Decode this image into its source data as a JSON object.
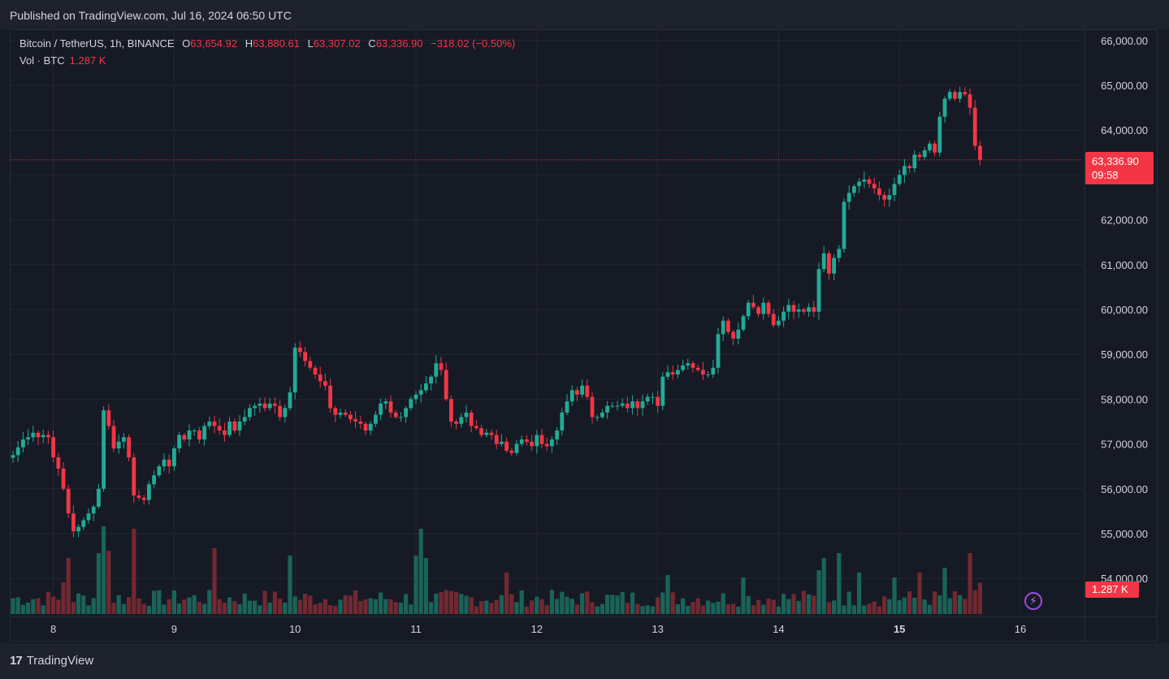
{
  "header": {
    "published": "Published on TradingView.com, Jul 16, 2024 06:50 UTC"
  },
  "legend": {
    "symbol": "Bitcoin / TetherUS, 1h, BINANCE",
    "o_label": "O",
    "o": "63,654.92",
    "h_label": "H",
    "h": "63,880.61",
    "l_label": "L",
    "l": "63,307.02",
    "c_label": "C",
    "c": "63,336.90",
    "change": "−318.02 (−0.50%)",
    "vol_label": "Vol · BTC",
    "vol_value": "1.287 K"
  },
  "price_tag": {
    "price": "63,336.90",
    "countdown": "09:58"
  },
  "vol_tag": "1.287 K",
  "footer": {
    "brand": "TradingView"
  },
  "colors": {
    "up": "#22ab94",
    "down": "#f23645",
    "background": "#161a25",
    "grid": "#232733"
  },
  "chart_data": {
    "type": "candlestick",
    "y_axis": {
      "range": [
        53400,
        66300
      ],
      "ticks": [
        54000,
        55000,
        56000,
        57000,
        58000,
        59000,
        60000,
        61000,
        62000,
        63000,
        64000,
        65000,
        66000
      ],
      "tick_labels": [
        "54,000.00",
        "55,000.00",
        "56,000.00",
        "57,000.00",
        "58,000.00",
        "59,000.00",
        "60,000.00",
        "61,000.00",
        "62,000.00",
        "63,000.00",
        "64,000.00",
        "65,000.00",
        "66,000.00"
      ]
    },
    "x_axis": {
      "labels": [
        "8",
        "9",
        "10",
        "11",
        "12",
        "13",
        "14",
        "15",
        "16"
      ],
      "bold": [
        "15"
      ]
    },
    "last_price": 63336.9,
    "close_path": [
      [
        0,
        56750
      ],
      [
        2,
        57100
      ],
      [
        3,
        57150
      ],
      [
        4,
        57250
      ],
      [
        5,
        57150
      ],
      [
        6,
        57200
      ],
      [
        7,
        57150
      ],
      [
        8,
        56700
      ],
      [
        9,
        56450
      ],
      [
        10,
        56000
      ],
      [
        11,
        55450
      ],
      [
        12,
        55050
      ],
      [
        13,
        55150
      ],
      [
        14,
        55300
      ],
      [
        15,
        55450
      ],
      [
        16,
        55600
      ],
      [
        17,
        56000
      ],
      [
        18,
        57750
      ],
      [
        19,
        57400
      ],
      [
        20,
        56900
      ],
      [
        21,
        57050
      ],
      [
        22,
        57150
      ],
      [
        23,
        56700
      ],
      [
        24,
        55850
      ],
      [
        25,
        55800
      ],
      [
        26,
        55750
      ],
      [
        27,
        56100
      ],
      [
        28,
        56300
      ],
      [
        29,
        56500
      ],
      [
        30,
        56650
      ],
      [
        31,
        56500
      ],
      [
        32,
        56900
      ],
      [
        33,
        57200
      ],
      [
        34,
        57100
      ],
      [
        35,
        57300
      ],
      [
        36,
        57300
      ],
      [
        37,
        57100
      ],
      [
        38,
        57400
      ],
      [
        39,
        57500
      ],
      [
        40,
        57400
      ],
      [
        41,
        57300
      ],
      [
        42,
        57200
      ],
      [
        43,
        57500
      ],
      [
        44,
        57300
      ],
      [
        45,
        57500
      ],
      [
        46,
        57600
      ],
      [
        47,
        57800
      ],
      [
        48,
        57850
      ],
      [
        49,
        57900
      ],
      [
        50,
        57800
      ],
      [
        51,
        57900
      ],
      [
        52,
        57850
      ],
      [
        53,
        57600
      ],
      [
        54,
        57800
      ],
      [
        55,
        58150
      ],
      [
        56,
        59150
      ],
      [
        57,
        59050
      ],
      [
        58,
        58850
      ],
      [
        59,
        58700
      ],
      [
        60,
        58550
      ],
      [
        61,
        58400
      ],
      [
        62,
        58300
      ],
      [
        63,
        57800
      ],
      [
        64,
        57650
      ],
      [
        65,
        57700
      ],
      [
        66,
        57650
      ],
      [
        67,
        57550
      ],
      [
        68,
        57500
      ],
      [
        69,
        57450
      ],
      [
        70,
        57300
      ],
      [
        71,
        57450
      ],
      [
        72,
        57650
      ],
      [
        73,
        57900
      ],
      [
        74,
        57950
      ],
      [
        75,
        57700
      ],
      [
        76,
        57600
      ],
      [
        77,
        57600
      ],
      [
        78,
        57800
      ],
      [
        79,
        58000
      ],
      [
        80,
        58100
      ],
      [
        81,
        58200
      ],
      [
        82,
        58350
      ],
      [
        83,
        58500
      ],
      [
        84,
        58800
      ],
      [
        85,
        58650
      ],
      [
        86,
        58000
      ],
      [
        87,
        57500
      ],
      [
        88,
        57450
      ],
      [
        89,
        57600
      ],
      [
        90,
        57700
      ],
      [
        91,
        57400
      ],
      [
        92,
        57350
      ],
      [
        93,
        57200
      ],
      [
        94,
        57250
      ],
      [
        95,
        57200
      ],
      [
        96,
        57000
      ],
      [
        97,
        57050
      ],
      [
        98,
        56850
      ],
      [
        99,
        56800
      ],
      [
        100,
        57000
      ],
      [
        101,
        57100
      ],
      [
        102,
        57050
      ],
      [
        103,
        56950
      ],
      [
        104,
        57200
      ],
      [
        105,
        57000
      ],
      [
        106,
        56950
      ],
      [
        107,
        57100
      ],
      [
        108,
        57300
      ],
      [
        109,
        57700
      ],
      [
        110,
        57950
      ],
      [
        111,
        58200
      ],
      [
        112,
        58100
      ],
      [
        113,
        58300
      ],
      [
        114,
        58050
      ],
      [
        115,
        57600
      ],
      [
        116,
        57600
      ],
      [
        117,
        57700
      ],
      [
        118,
        57850
      ],
      [
        119,
        57850
      ],
      [
        120,
        57850
      ],
      [
        121,
        57900
      ],
      [
        122,
        57800
      ],
      [
        123,
        57950
      ],
      [
        124,
        57800
      ],
      [
        125,
        57950
      ],
      [
        126,
        58050
      ],
      [
        127,
        58050
      ],
      [
        128,
        57850
      ],
      [
        129,
        58500
      ],
      [
        130,
        58600
      ],
      [
        131,
        58550
      ],
      [
        132,
        58650
      ],
      [
        133,
        58750
      ],
      [
        134,
        58800
      ],
      [
        135,
        58700
      ],
      [
        136,
        58650
      ],
      [
        137,
        58550
      ],
      [
        138,
        58550
      ],
      [
        139,
        58700
      ],
      [
        140,
        59450
      ],
      [
        141,
        59750
      ],
      [
        142,
        59500
      ],
      [
        143,
        59350
      ],
      [
        144,
        59550
      ],
      [
        145,
        59850
      ],
      [
        146,
        60150
      ],
      [
        147,
        60050
      ],
      [
        148,
        59900
      ],
      [
        149,
        60150
      ],
      [
        150,
        59900
      ],
      [
        151,
        59650
      ],
      [
        152,
        59750
      ],
      [
        153,
        59950
      ],
      [
        154,
        60100
      ],
      [
        155,
        59950
      ],
      [
        156,
        60000
      ],
      [
        157,
        59950
      ],
      [
        158,
        60050
      ],
      [
        159,
        59950
      ],
      [
        160,
        60900
      ],
      [
        161,
        61250
      ],
      [
        162,
        60800
      ],
      [
        163,
        61150
      ],
      [
        164,
        61350
      ],
      [
        165,
        62400
      ],
      [
        166,
        62600
      ],
      [
        167,
        62750
      ],
      [
        168,
        62850
      ],
      [
        169,
        62900
      ],
      [
        170,
        62800
      ],
      [
        171,
        62700
      ],
      [
        172,
        62550
      ],
      [
        173,
        62450
      ],
      [
        174,
        62550
      ],
      [
        175,
        62800
      ],
      [
        176,
        63000
      ],
      [
        177,
        63200
      ],
      [
        178,
        63150
      ],
      [
        179,
        63450
      ],
      [
        180,
        63400
      ],
      [
        181,
        63550
      ],
      [
        182,
        63700
      ],
      [
        183,
        63500
      ],
      [
        184,
        64300
      ],
      [
        185,
        64700
      ],
      [
        186,
        64850
      ],
      [
        187,
        64700
      ],
      [
        188,
        64850
      ],
      [
        189,
        64800
      ],
      [
        190,
        64500
      ],
      [
        191,
        63650
      ],
      [
        192,
        63336.9
      ]
    ],
    "volume": {
      "current": 1.287,
      "unit": "K BTC",
      "spikes": [
        [
          10,
          1.3
        ],
        [
          11,
          2.3
        ],
        [
          17,
          2.5
        ],
        [
          18,
          3.6
        ],
        [
          19,
          2.6
        ],
        [
          24,
          3.5
        ],
        [
          40,
          2.7
        ],
        [
          55,
          2.4
        ],
        [
          80,
          2.4
        ],
        [
          81,
          3.5
        ],
        [
          82,
          2.3
        ],
        [
          98,
          1.7
        ],
        [
          130,
          1.6
        ],
        [
          145,
          1.5
        ],
        [
          160,
          1.8
        ],
        [
          161,
          2.3
        ],
        [
          164,
          2.5
        ],
        [
          168,
          1.7
        ],
        [
          175,
          1.5
        ],
        [
          180,
          1.7
        ],
        [
          185,
          1.9
        ],
        [
          190,
          2.5
        ]
      ]
    }
  }
}
